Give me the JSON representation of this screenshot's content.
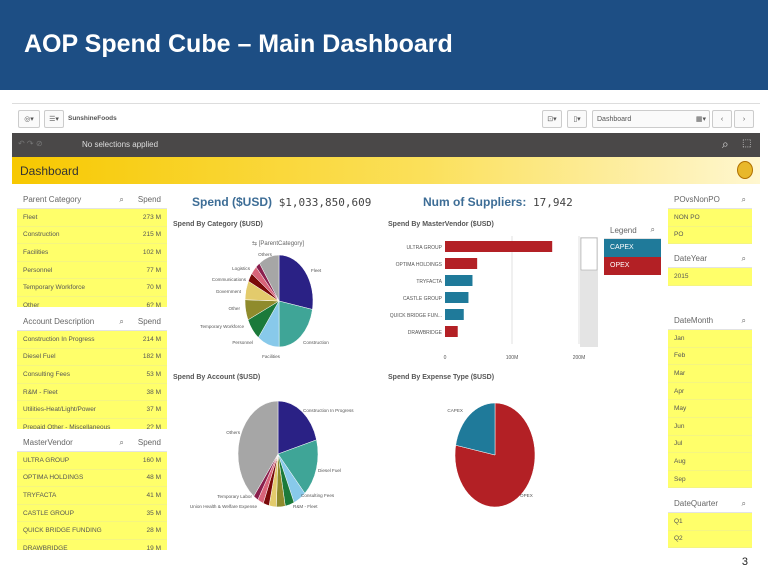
{
  "slide": {
    "title": "AOP Spend Cube – Main Dashboard",
    "page_number": "3"
  },
  "toolbar": {
    "app_name": "SunshineFoods",
    "sheet": "Dashboard",
    "selections": "No selections applied"
  },
  "sheet_title": "Dashboard",
  "kpis": {
    "spend_label": "Spend ($USD)",
    "spend_value": "$1,033,850,609",
    "suppliers_label": "Num of Suppliers:",
    "suppliers_value": "17,942"
  },
  "lists": {
    "parent_category": {
      "header": "Parent Category",
      "measure": "Spend",
      "rows": [
        [
          "Fleet",
          "273 M"
        ],
        [
          "Construction",
          "215 M"
        ],
        [
          "Facilities",
          "102 M"
        ],
        [
          "Personnel",
          "77 M"
        ],
        [
          "Temporary Workforce",
          "70 M"
        ],
        [
          "Other",
          "6? M"
        ]
      ]
    },
    "account": {
      "header": "Account Description",
      "measure": "Spend",
      "rows": [
        [
          "Construction In Progress",
          "214 M"
        ],
        [
          "Diesel Fuel",
          "182 M"
        ],
        [
          "Consulting Fees",
          "53 M"
        ],
        [
          "R&M - Fleet",
          "38 M"
        ],
        [
          "Utilities-Heat/Light/Power",
          "37 M"
        ],
        [
          "Prepaid Other - Miscellaneous",
          "2? M"
        ]
      ]
    },
    "vendor": {
      "header": "MasterVendor",
      "measure": "Spend",
      "rows": [
        [
          "ULTRA GROUP",
          "160 M"
        ],
        [
          "OPTIMA HOLDINGS",
          "48 M"
        ],
        [
          "TRYFACTA",
          "41 M"
        ],
        [
          "CASTLE GROUP",
          "35 M"
        ],
        [
          "QUICK BRIDGE FUNDING",
          "28 M"
        ],
        [
          "DRAWBRIDGE",
          "19 M"
        ]
      ]
    }
  },
  "filters": [
    {
      "header": "POvsNonPO",
      "values": [
        "NON PO",
        "PO"
      ]
    },
    {
      "header": "DateYear",
      "values": [
        "2015"
      ]
    },
    {
      "header": "DateMonth",
      "values": [
        "Jan",
        "Feb",
        "Mar",
        "Apr",
        "May",
        "Jun",
        "Jul",
        "Aug",
        "Sep"
      ]
    },
    {
      "header": "DateQuarter",
      "values": [
        "Q1",
        "Q2"
      ]
    }
  ],
  "legend": {
    "title": "Legend",
    "items": [
      {
        "label": "CAPEX",
        "color": "#1f7a9a"
      },
      {
        "label": "OPEX",
        "color": "#b32025"
      }
    ]
  },
  "chart_data": [
    {
      "type": "pie",
      "title": "Spend By Category ($USD)",
      "subtitle": "[ParentCategory]",
      "labels": [
        "Fleet",
        "Construction",
        "Facilities",
        "Personnel",
        "Temporary Workforce",
        "Other",
        "Government",
        "Communications",
        "Logistics",
        "Others"
      ],
      "values": [
        273,
        215,
        102,
        77,
        70,
        65,
        30,
        30,
        20,
        95
      ],
      "colors": [
        "#2a2185",
        "#3fa597",
        "#88c9ea",
        "#1b7a3a",
        "#8f8b2c",
        "#e3cb6c",
        "#7a0a0a",
        "#d9647a",
        "#8a1f4d",
        "#a6a6a6"
      ]
    },
    {
      "type": "bar",
      "orientation": "horizontal",
      "title": "Spend By MasterVendor ($USD)",
      "categories": [
        "ULTRA GROUP",
        "OPTIMA HOLDINGS",
        "TRYFACTA",
        "CASTLE GROUP",
        "QUICK BRIDGE FUN...",
        "DRAWBRIDGE"
      ],
      "values": [
        160,
        48,
        41,
        35,
        28,
        19
      ],
      "series_type": [
        "OPEX",
        "OPEX",
        "CAPEX",
        "CAPEX",
        "CAPEX",
        "OPEX"
      ],
      "xticks": [
        "0",
        "100M",
        "200M"
      ],
      "xlim": [
        0,
        200
      ]
    },
    {
      "type": "pie",
      "title": "Spend By Account ($USD)",
      "labels": [
        "Construction In Progress",
        "Diesel Fuel",
        "Consulting Fees",
        "R&M - Fleet",
        "",
        "",
        "Union Health & Welfare Expense",
        "Temporary Labor",
        "",
        "Others"
      ],
      "values": [
        214,
        182,
        53,
        38,
        37,
        30,
        25,
        25,
        20,
        410
      ],
      "colors": [
        "#2a2185",
        "#3fa597",
        "#88c9ea",
        "#1b7a3a",
        "#8f8b2c",
        "#e3cb6c",
        "#7a0a0a",
        "#d9647a",
        "#8a1f4d",
        "#a6a6a6"
      ]
    },
    {
      "type": "pie",
      "title": "Spend By Expense Type ($USD)",
      "labels": [
        "OPEX",
        "CAPEX"
      ],
      "values": [
        78,
        22
      ],
      "colors": [
        "#b32025",
        "#1f7a9a"
      ]
    }
  ]
}
